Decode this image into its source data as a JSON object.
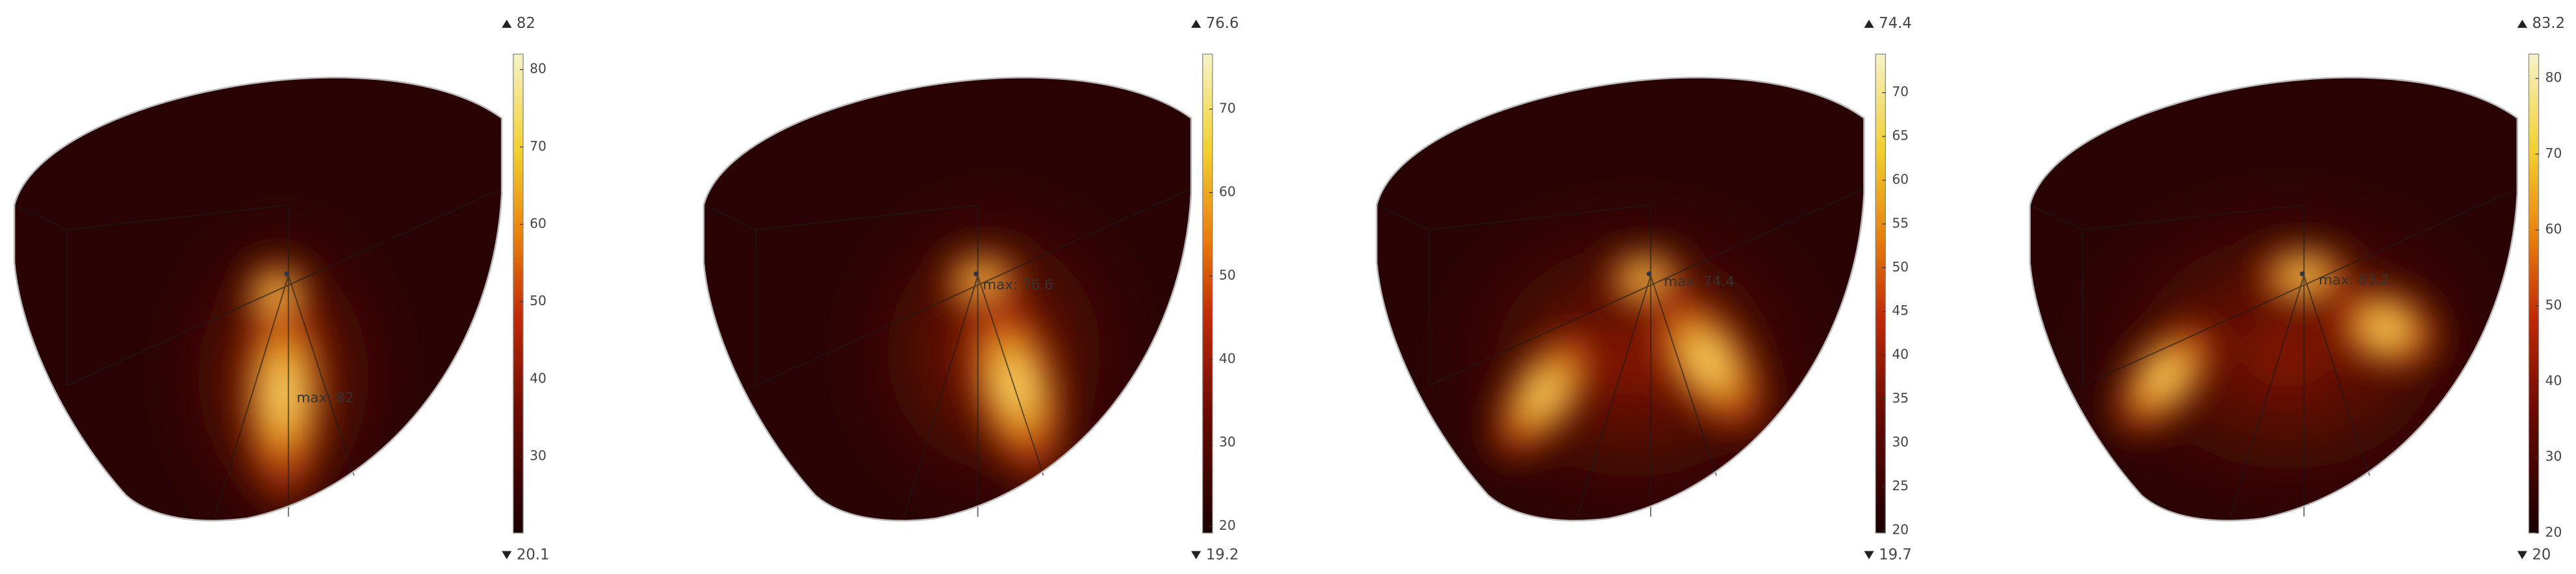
{
  "panels": [
    {
      "max": 82,
      "min": 20.1,
      "ticks": [
        30,
        40,
        50,
        60,
        70,
        80
      ],
      "max_label": "max: 82"
    },
    {
      "max": 76.6,
      "min": 19.2,
      "ticks": [
        20,
        30,
        40,
        50,
        60,
        70
      ],
      "max_label": "max: 76.6"
    },
    {
      "max": 74.4,
      "min": 19.7,
      "ticks": [
        20,
        25,
        30,
        35,
        40,
        45,
        50,
        55,
        60,
        65,
        70
      ],
      "max_label": "max: 74.4"
    },
    {
      "max": 83.2,
      "min": 20,
      "ticks": [
        20,
        30,
        40,
        50,
        60,
        70,
        80
      ],
      "max_label": "max: 83.2"
    }
  ]
}
